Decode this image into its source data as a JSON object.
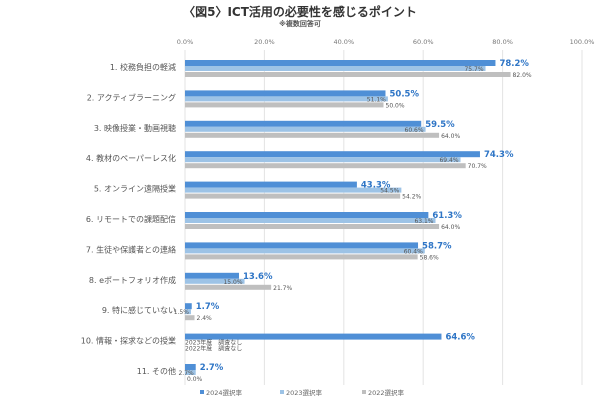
{
  "chart_data": {
    "type": "bar",
    "orientation": "horizontal",
    "title": "〈図5〉ICT活用の必要性を感じるポイント",
    "subtitle": "※複数回答可",
    "xlim": [
      0,
      100
    ],
    "xticks": [
      "0.0%",
      "20.0%",
      "40.0%",
      "60.0%",
      "80.0%",
      "100.0%"
    ],
    "grid": true,
    "legend_position": "bottom",
    "categories": [
      "1. 校務負担の軽減",
      "2. アクティブラーニング",
      "3. 映像授業・動画視聴",
      "4. 教材のペーパーレス化",
      "5. オンライン遠隔授業",
      "6. リモートでの課題配信",
      "7. 生徒や保護者との連絡",
      "8. eポートフォリオ作成",
      "9. 特に感じていない",
      "10. 情報・探求などの授業",
      "11. その他"
    ],
    "series": [
      {
        "name": "2024選択率",
        "color": "#4f8fd6",
        "values": [
          78.2,
          50.5,
          59.5,
          74.3,
          43.3,
          61.3,
          58.7,
          13.6,
          1.7,
          64.6,
          2.7
        ]
      },
      {
        "name": "2023選択率",
        "color": "#9dc3e6",
        "values": [
          75.7,
          51.1,
          60.6,
          69.4,
          54.5,
          63.1,
          60.4,
          15.0,
          1.5,
          null,
          2.7
        ]
      },
      {
        "name": "2022選択率",
        "color": "#bfbfbf",
        "values": [
          82.0,
          50.0,
          64.0,
          70.7,
          54.2,
          64.0,
          58.6,
          21.7,
          2.4,
          null,
          0.0
        ]
      }
    ],
    "annotations": [
      "2023年度　調査なし",
      "2022年度　調査なし"
    ]
  }
}
